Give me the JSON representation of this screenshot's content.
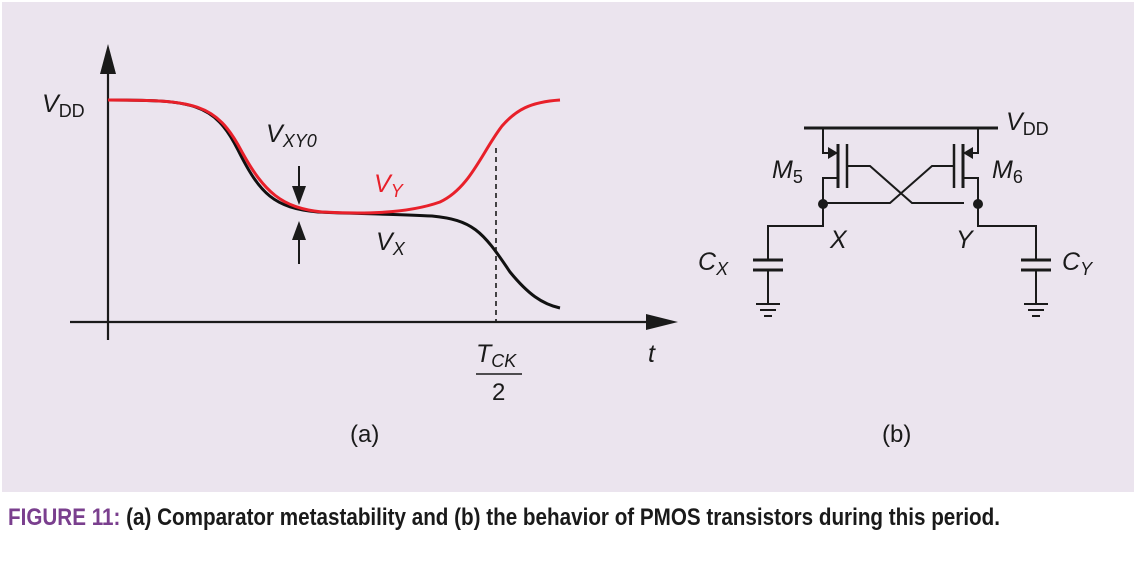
{
  "colors": {
    "panel_bg": "#ebe4ee",
    "vy_curve": "#e8202a",
    "vx_curve": "#111111",
    "caption_accent": "#7a3f8e"
  },
  "panel_a": {
    "y_label_main": "V",
    "y_label_sub": "DD",
    "diff_label_main": "V",
    "diff_label_sub": "XY0",
    "vy_label_main": "V",
    "vy_label_sub": "Y",
    "vx_label_main": "V",
    "vx_label_sub": "X",
    "time_marker_num_main": "T",
    "time_marker_num_sub": "CK",
    "time_marker_den": "2",
    "x_axis_label": "t",
    "panel_label": "(a)"
  },
  "panel_b": {
    "supply_main": "V",
    "supply_sub": "DD",
    "m5_main": "M",
    "m5_sub": "5",
    "m6_main": "M",
    "m6_sub": "6",
    "node_x": "X",
    "node_y": "Y",
    "cx_main": "C",
    "cx_sub": "X",
    "cy_main": "C",
    "cy_sub": "Y",
    "panel_label": "(b)"
  },
  "caption": {
    "label": "FIGURE 11:",
    "text": " (a) Comparator metastability and (b) the behavior of PMOS transistors during this period."
  }
}
